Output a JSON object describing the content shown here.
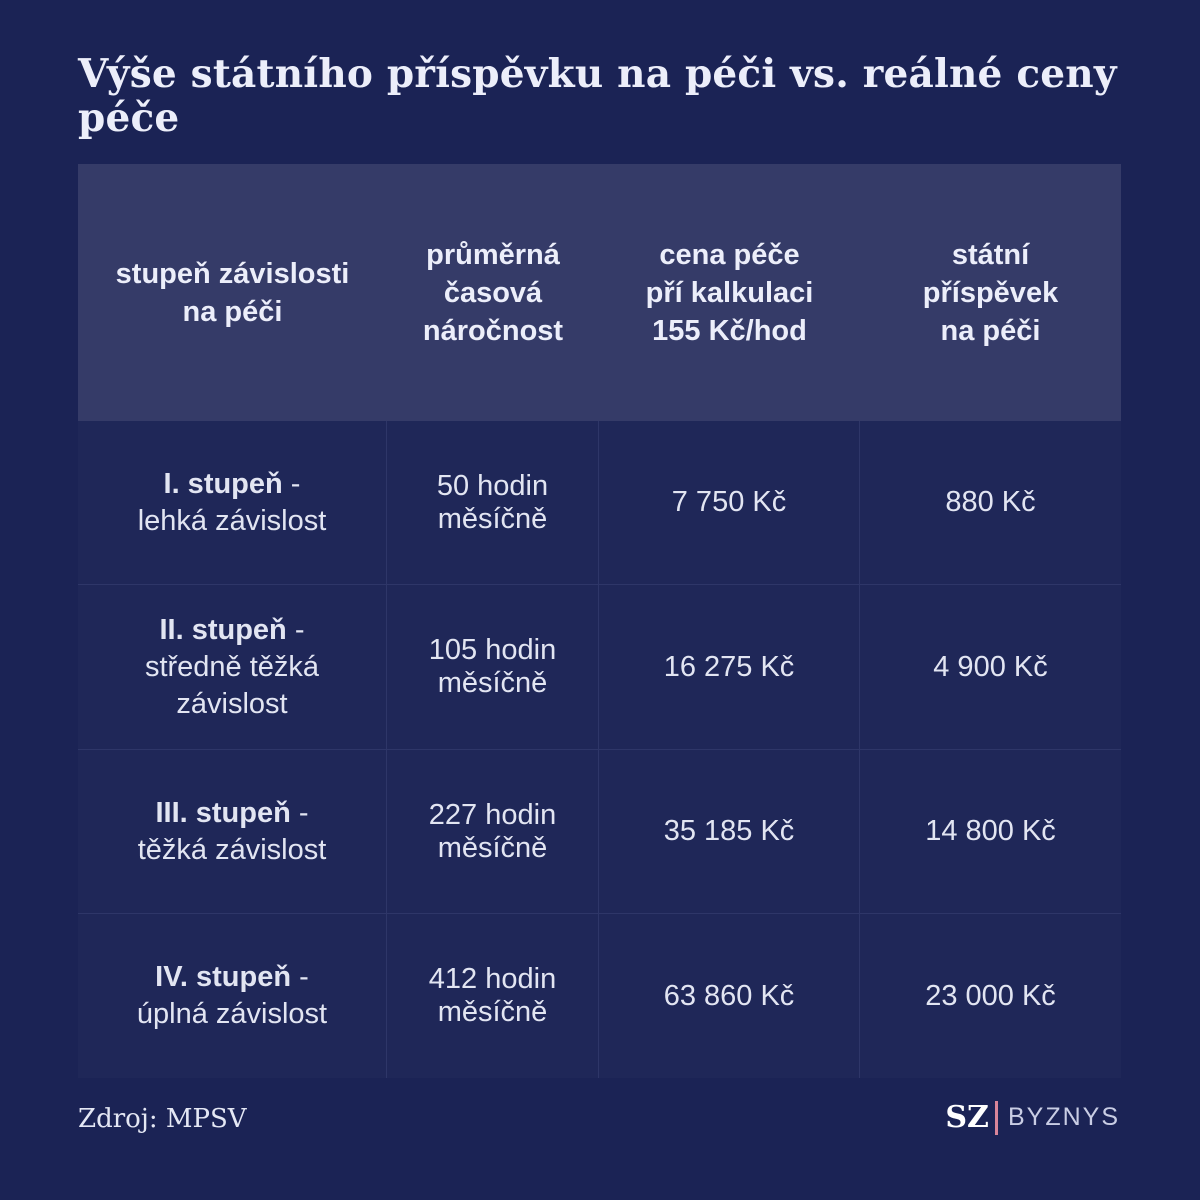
{
  "title": "Výše státního příspěvku na péči vs. reálné ceny péče",
  "table": {
    "headers": [
      [
        "stupeň závislosti",
        "na péči"
      ],
      [
        "průměrná",
        "časová",
        "náročnost"
      ],
      [
        "cena péče",
        "pří kalkulaci",
        "155 Kč/hod"
      ],
      [
        "státní",
        "příspěvek",
        "na péči"
      ]
    ],
    "rows": [
      {
        "level": "I. stupeň",
        "level_suffix": " -",
        "desc": "lehká závislost",
        "time": [
          "50 hodin",
          "měsíčně"
        ],
        "cost": "7 750 Kč",
        "contribution": "880 Kč"
      },
      {
        "level": "II. stupeň",
        "level_suffix": " -",
        "desc": "středně těžká závislost",
        "time": [
          "105 hodin",
          "měsíčně"
        ],
        "cost": "16 275 Kč",
        "contribution": "4 900 Kč"
      },
      {
        "level": "III. stupeň",
        "level_suffix": " -",
        "desc": "těžká závislost",
        "time": [
          "227 hodin",
          "měsíčně"
        ],
        "cost": "35 185 Kč",
        "contribution": "14 800 Kč"
      },
      {
        "level": "IV. stupeň",
        "level_suffix": " -",
        "desc": "úplná závislost",
        "time": [
          "412 hodin",
          "měsíčně"
        ],
        "cost": "63 860 Kč",
        "contribution": "23 000 Kč"
      }
    ]
  },
  "footer": {
    "source": "Zdroj: MPSV",
    "brand_sz": "SZ",
    "brand_section": "BYZNYS"
  },
  "colors": {
    "background": "#1b2355",
    "header_bg": "#353b68",
    "cell_bg": "#1f2758",
    "brand_accent": "#d9859a"
  }
}
